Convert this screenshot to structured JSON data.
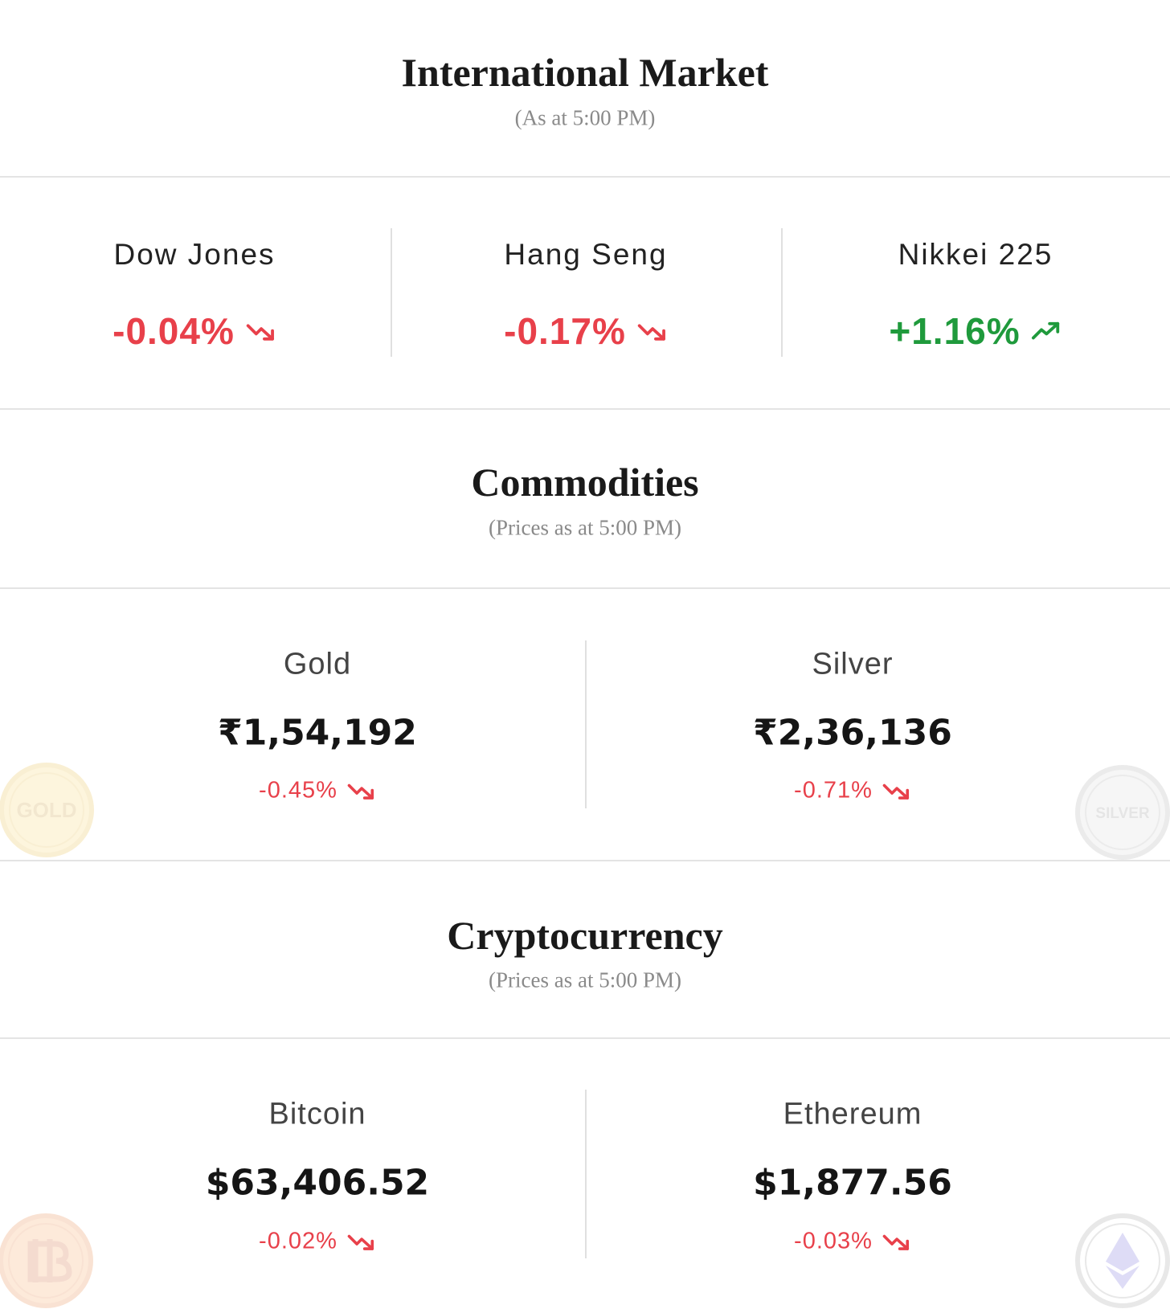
{
  "sections": [
    {
      "title": "International Market",
      "subtitle": "(As at 5:00 PM)",
      "items": [
        {
          "name": "Dow Jones",
          "change": "-0.04%"
        },
        {
          "name": "Hang Seng",
          "change": "-0.17%"
        },
        {
          "name": "Nikkei 225",
          "change": "+1.16%"
        }
      ]
    },
    {
      "title": "Commodities",
      "subtitle": "(Prices as at 5:00 PM)",
      "items": [
        {
          "name": "Gold",
          "price": "₹1,54,192",
          "change": "-0.45%",
          "badge": "GOLD"
        },
        {
          "name": "Silver",
          "price": "₹2,36,136",
          "change": "-0.71%",
          "badge": "SILVER"
        }
      ]
    },
    {
      "title": "Cryptocurrency",
      "subtitle": "(Prices as at 5:00 PM)",
      "items": [
        {
          "name": "Bitcoin",
          "price": "$63,406.52",
          "change": "-0.02%"
        },
        {
          "name": "Ethereum",
          "price": "$1,877.56",
          "change": "-0.03%"
        }
      ]
    }
  ]
}
